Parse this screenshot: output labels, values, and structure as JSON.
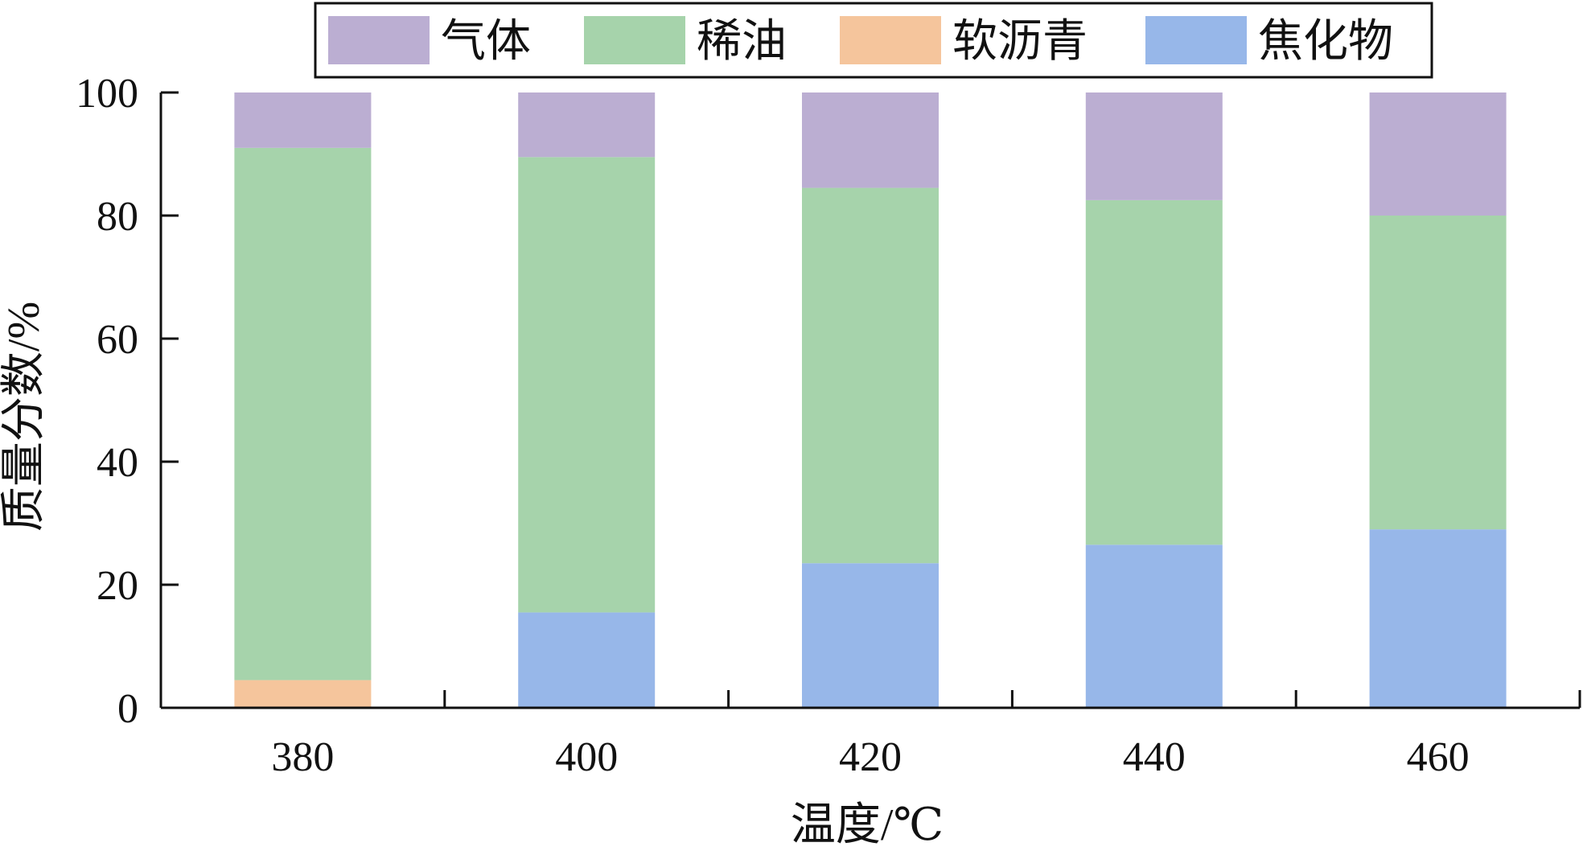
{
  "chart_data": {
    "type": "bar",
    "stacked": true,
    "title": "",
    "xlabel": "温度/℃",
    "ylabel": "质量分数/%",
    "categories": [
      "380",
      "400",
      "420",
      "440",
      "460"
    ],
    "ylim": [
      0,
      100
    ],
    "yticks": [
      "0",
      "20",
      "40",
      "60",
      "80",
      "100"
    ],
    "grid": false,
    "legend_position": "top",
    "series": [
      {
        "name": "焦化物",
        "color": "#97b7e9",
        "values": [
          0,
          15.5,
          23.5,
          26.5,
          29
        ]
      },
      {
        "name": "软沥青",
        "color": "#f5c59c",
        "values": [
          4.5,
          0,
          0,
          0,
          0
        ]
      },
      {
        "name": "稀油",
        "color": "#a6d3ab",
        "values": [
          86.5,
          74,
          61,
          56,
          51
        ]
      },
      {
        "name": "气体",
        "color": "#bbaed2",
        "values": [
          9,
          10.5,
          15.5,
          17.5,
          20
        ]
      }
    ],
    "legend_order": [
      "气体",
      "稀油",
      "软沥青",
      "焦化物"
    ]
  }
}
